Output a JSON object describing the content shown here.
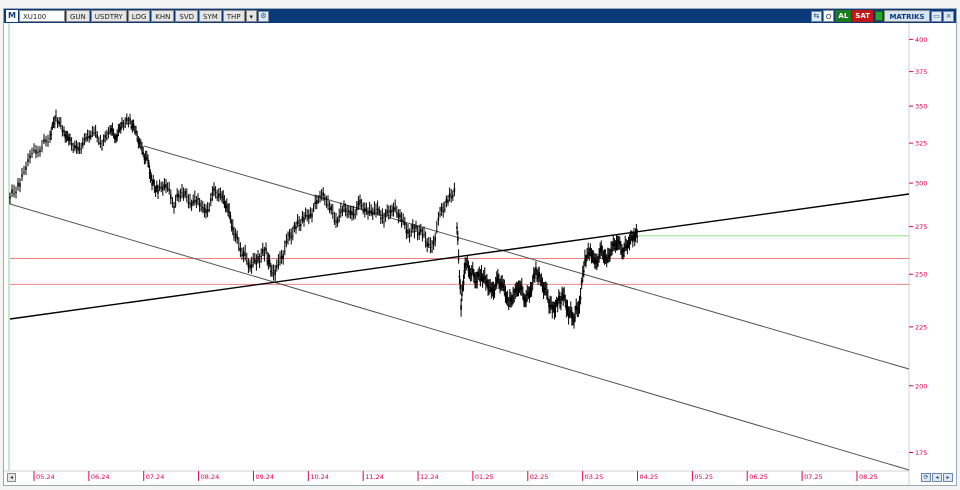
{
  "toolbar": {
    "logo": "M",
    "symbol": "XU100",
    "buttons": [
      "GUN",
      "USDTRY",
      "LOG",
      "KHN",
      "SVD",
      "SYM",
      "THP"
    ],
    "dropdown_icon": "▾",
    "right_o": "O",
    "buy": "AL",
    "sell": "SAT",
    "brand": "MATRIKS"
  },
  "colors": {
    "price_axis": "#e0004a",
    "candles": "#000000",
    "channel_lines": "#555555",
    "trendline": "#000000",
    "horizontal_levels": "#f08080",
    "target_level": "#90e090",
    "border": "#9aa8b8"
  },
  "chart_data": {
    "type": "candlestick",
    "y_axis": {
      "ticks": [
        "400",
        "375",
        "350",
        "325",
        "300",
        "275",
        "250",
        "225",
        "200",
        "175"
      ],
      "tick_values": [
        400,
        375,
        350,
        325,
        300,
        275,
        250,
        225,
        200,
        175
      ],
      "scale": "log",
      "range": [
        170,
        410
      ]
    },
    "x_axis": {
      "ticks": [
        "05.24",
        "06.24",
        "07.24",
        "08.24",
        "09.24",
        "10.24",
        "11.24",
        "12.24",
        "01.25",
        "02.25",
        "03.25",
        "04.25",
        "05.25",
        "06.25",
        "07.25",
        "08.25"
      ],
      "range": [
        0,
        23
      ]
    },
    "price_path": [
      [
        0,
        292
      ],
      [
        0.5,
        300
      ],
      [
        1,
        318
      ],
      [
        1.5,
        322
      ],
      [
        2,
        330
      ],
      [
        2.3,
        343
      ],
      [
        2.7,
        332
      ],
      [
        3,
        326
      ],
      [
        3.4,
        320
      ],
      [
        3.8,
        328
      ],
      [
        4.2,
        333
      ],
      [
        4.6,
        324
      ],
      [
        5,
        335
      ],
      [
        5.3,
        329
      ],
      [
        5.6,
        338
      ],
      [
        6.0,
        340
      ],
      [
        6.3,
        332
      ],
      [
        6.6,
        320
      ],
      [
        6.9,
        313
      ],
      [
        7.1,
        300
      ],
      [
        7.4,
        296
      ],
      [
        7.8,
        300
      ],
      [
        8.2,
        288
      ],
      [
        8.6,
        296
      ],
      [
        9.0,
        289
      ],
      [
        9.4,
        290
      ],
      [
        9.8,
        282
      ],
      [
        10.2,
        295
      ],
      [
        10.6,
        292
      ],
      [
        10.9,
        285
      ],
      [
        11.2,
        272
      ],
      [
        11.6,
        262
      ],
      [
        12.0,
        255
      ],
      [
        12.4,
        258
      ],
      [
        12.8,
        262
      ],
      [
        13.1,
        250
      ],
      [
        13.5,
        256
      ],
      [
        13.9,
        268
      ],
      [
        14.3,
        275
      ],
      [
        14.7,
        280
      ],
      [
        15.1,
        283
      ],
      [
        15.5,
        294
      ],
      [
        15.9,
        289
      ],
      [
        16.3,
        278
      ],
      [
        16.7,
        286
      ],
      [
        17.1,
        281
      ],
      [
        17.5,
        288
      ],
      [
        17.9,
        283
      ],
      [
        18.3,
        285
      ],
      [
        18.7,
        280
      ],
      [
        19.1,
        286
      ],
      [
        19.5,
        282
      ],
      [
        19.9,
        272
      ],
      [
        20.3,
        274
      ],
      [
        20.7,
        270
      ],
      [
        21.1,
        262
      ],
      [
        21.5,
        282
      ],
      [
        21.9,
        290
      ],
      [
        22.3,
        297
      ]
    ],
    "price_path_2": [
      [
        0,
        275
      ],
      [
        0.3,
        235
      ],
      [
        0.6,
        256
      ],
      [
        1.0,
        252
      ],
      [
        1.4,
        248
      ],
      [
        1.8,
        250
      ],
      [
        2.2,
        246
      ],
      [
        2.6,
        241
      ],
      [
        3.0,
        247
      ],
      [
        3.4,
        244
      ],
      [
        3.8,
        236
      ],
      [
        4.2,
        240
      ],
      [
        4.6,
        245
      ],
      [
        5.0,
        238
      ],
      [
        5.4,
        242
      ],
      [
        5.8,
        252
      ],
      [
        6.2,
        246
      ],
      [
        6.6,
        240
      ],
      [
        7.0,
        232
      ],
      [
        7.4,
        236
      ],
      [
        7.8,
        240
      ],
      [
        8.2,
        232
      ],
      [
        8.6,
        230
      ],
      [
        9.0,
        236
      ],
      [
        9.4,
        258
      ],
      [
        9.8,
        262
      ],
      [
        10.2,
        255
      ],
      [
        10.6,
        262
      ],
      [
        11.0,
        257
      ],
      [
        11.4,
        264
      ],
      [
        11.8,
        267
      ],
      [
        12.2,
        262
      ],
      [
        12.6,
        267
      ],
      [
        13.0,
        270
      ],
      [
        13.3,
        271
      ]
    ],
    "levels": [
      {
        "name": "resistance_upper",
        "value": 258
      },
      {
        "name": "support_lower",
        "value": 245
      },
      {
        "name": "target",
        "value": 270
      }
    ]
  }
}
